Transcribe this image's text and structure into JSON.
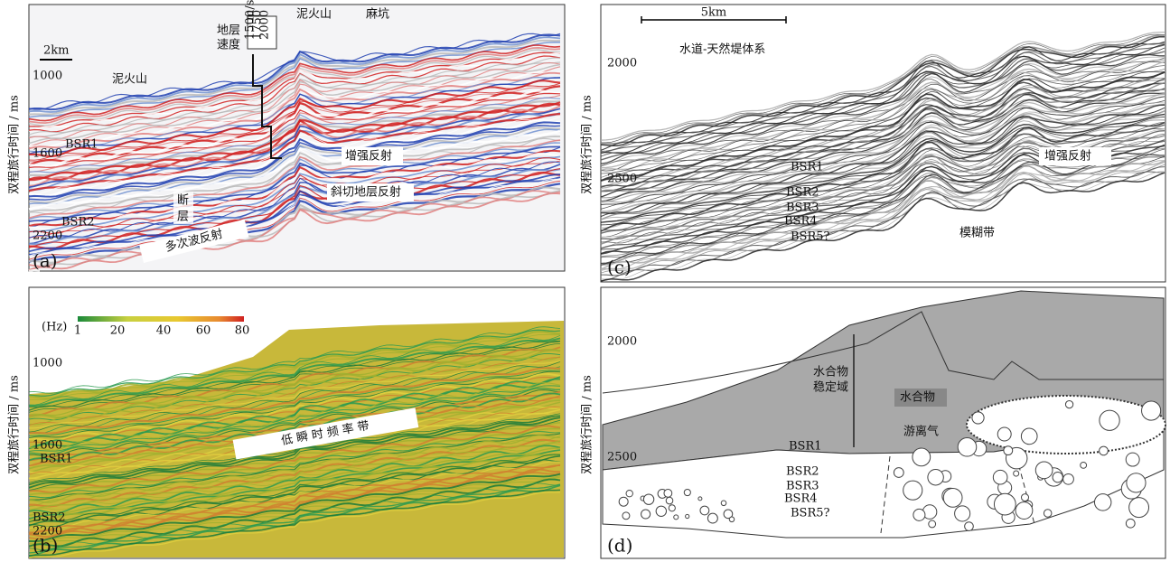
{
  "panels": {
    "a": {
      "label": "(a)",
      "axis_title": "双程旅行时间 / ms",
      "ticks": [
        "1000",
        "1600",
        "2200"
      ],
      "scale": "2km",
      "velocity_title": [
        "地层",
        "速度"
      ],
      "velocity_ticks": [
        "m/s",
        "1500",
        "1750",
        "2000"
      ],
      "mud_volcano_1": "泥火山",
      "mud_volcano_2": "泥火山",
      "pockmark": "麻坑",
      "bsr1": "BSR1",
      "bsr2": "BSR2",
      "fault": [
        "断",
        "层"
      ],
      "multiple": "多次波反射",
      "enhanced": "增强反射",
      "oblique": "斜切地层反射"
    },
    "b": {
      "label": "(b)",
      "axis_title": "双程旅行时间 / ms",
      "ticks": [
        "1000",
        "1600",
        "2200"
      ],
      "unit": "(Hz)",
      "colorbar_ticks": [
        "1",
        "20",
        "40",
        "60",
        "80"
      ],
      "band": "低 瞬 时 频 率 带",
      "bsr1": "BSR1",
      "bsr2": "BSR2"
    },
    "c": {
      "label": "(c)",
      "axis_title": "双程旅行时间 / ms",
      "ticks": [
        "2000",
        "2500"
      ],
      "scale": "5km",
      "channel": "水道-天然堤体系",
      "bsrs": [
        "BSR1",
        "BSR2",
        "BSR3",
        "BSR4",
        "BSR5?"
      ],
      "enhanced": "增强反射",
      "blur": "模糊带"
    },
    "d": {
      "label": "(d)",
      "axis_title": "双程旅行时间 / ms",
      "ticks": [
        "2000",
        "2500"
      ],
      "stability": [
        "水合物",
        "稳定域"
      ],
      "hydrate": "水合物",
      "free_gas": "游离气",
      "bsrs": [
        "BSR1",
        "BSR2",
        "BSR3",
        "BSR4",
        "BSR5?"
      ]
    }
  }
}
